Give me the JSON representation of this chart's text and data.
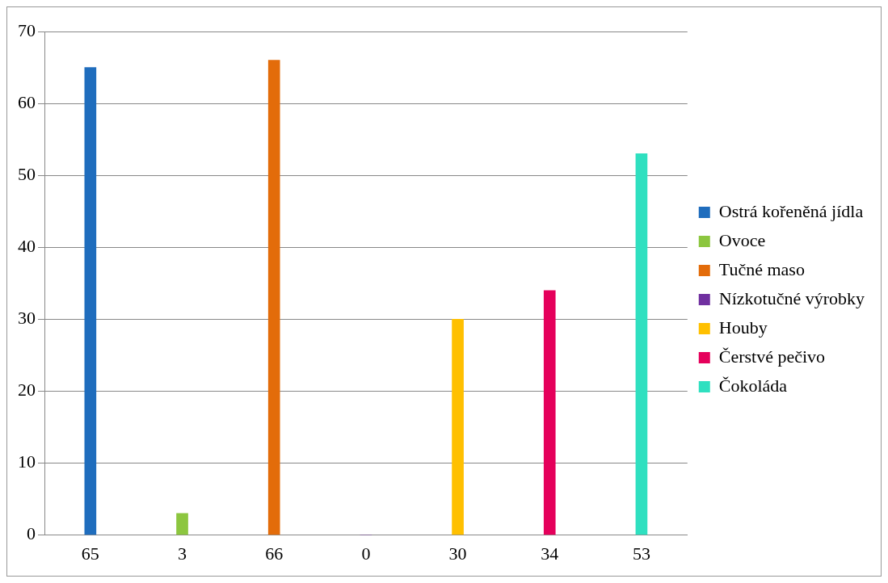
{
  "chart_data": {
    "type": "bar",
    "categories": [
      "65",
      "3",
      "66",
      "0",
      "30",
      "34",
      "53"
    ],
    "series": [
      {
        "name": "Ostrá kořeněná jídla",
        "color": "#1f6dbd",
        "values": [
          65,
          null,
          null,
          null,
          null,
          null,
          null
        ]
      },
      {
        "name": "Ovoce",
        "color": "#8cc63f",
        "values": [
          null,
          3,
          null,
          null,
          null,
          null,
          null
        ]
      },
      {
        "name": "Tučné maso",
        "color": "#e36c0a",
        "values": [
          null,
          null,
          66,
          null,
          null,
          null,
          null
        ]
      },
      {
        "name": "Nízkotučné výrobky",
        "color": "#7030a0",
        "values": [
          null,
          null,
          null,
          0,
          null,
          null,
          null
        ]
      },
      {
        "name": "Houby",
        "color": "#ffc000",
        "values": [
          null,
          null,
          null,
          null,
          30,
          null,
          null
        ]
      },
      {
        "name": "Čerstvé pečivo",
        "color": "#e5005b",
        "values": [
          null,
          null,
          null,
          null,
          null,
          34,
          null
        ]
      },
      {
        "name": "Čokoláda",
        "color": "#2fe0c0",
        "values": [
          null,
          null,
          null,
          null,
          null,
          null,
          53
        ]
      }
    ],
    "ylim": [
      0,
      70
    ],
    "yticks": [
      0,
      10,
      20,
      30,
      40,
      50,
      60,
      70
    ],
    "grid": "y",
    "legend": "right"
  }
}
